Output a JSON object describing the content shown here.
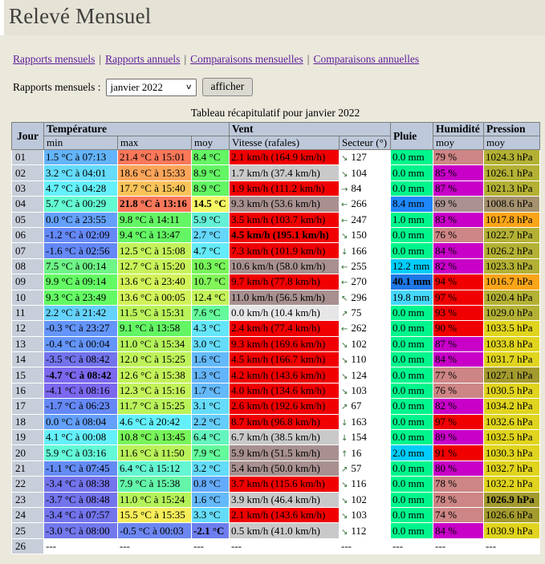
{
  "header": {
    "title": "Relevé Mensuel"
  },
  "nav": {
    "separator": "|",
    "links": [
      {
        "label": "Rapports mensuels"
      },
      {
        "label": "Rapports annuels"
      },
      {
        "label": "Comparaisons mensuelles"
      },
      {
        "label": "Comparaisons annuelles"
      }
    ]
  },
  "controls": {
    "label": "Rapports mensuels :",
    "select_value": "janvier 2022",
    "button_label": "afficher"
  },
  "colors": {
    "page_bg": "#ebe8dc",
    "band_bg": "#e5e2d6",
    "header_cell_bg": "#bdc8da",
    "day_cell_bg": "#c7cdd9",
    "link": "#5b1d99",
    "arrow": "#2f6b2f",
    "title": "#403f3b"
  },
  "table": {
    "caption": "Tableau récapitulatif pour janvier 2022",
    "headers": {
      "jour": "Jour",
      "temperature": "Température",
      "vent": "Vent",
      "pluie": "Pluie",
      "humidite": "Humidité",
      "pression": "Pression",
      "min": "min",
      "max": "max",
      "moy": "moy",
      "vitesse": "Vitesse (rafales)",
      "secteur": "Secteur (°)",
      "hum_moy": "moy",
      "press_moy": "moy"
    },
    "rows": [
      {
        "day": "01",
        "min": {
          "t": "1.5 °C à 07:13",
          "c": "#64b4fa"
        },
        "max": {
          "t": "21.4 °C à 15:01",
          "c": "#fa785a"
        },
        "avg": {
          "t": "8.4 °C",
          "c": "#64f564"
        },
        "wind": {
          "t": "2.1 km/h (164.9 km/h)",
          "c": "#f00000"
        },
        "sector": {
          "arrow": "↘",
          "deg": "127"
        },
        "rain": {
          "t": "0.0 mm",
          "c": "#00f58c"
        },
        "hum": {
          "t": "79 %",
          "c": "#cd8585"
        },
        "press": {
          "t": "1024.3 hPa",
          "c": "#b3b135"
        }
      },
      {
        "day": "02",
        "min": {
          "t": "3.2 °C à 04:01",
          "c": "#64dcfa"
        },
        "max": {
          "t": "18.6 °C à 15:33",
          "c": "#faa55a"
        },
        "avg": {
          "t": "8.9 °C",
          "c": "#64f564"
        },
        "wind": {
          "t": "1.7 km/h (37.4 km/h)",
          "c": "#c9c9c9"
        },
        "sector": {
          "arrow": "↘",
          "deg": "104"
        },
        "rain": {
          "t": "0.0 mm",
          "c": "#00f58c"
        },
        "hum": {
          "t": "85 %",
          "c": "#c800c8"
        },
        "press": {
          "t": "1026.1 hPa",
          "c": "#b3b135"
        }
      },
      {
        "day": "03",
        "min": {
          "t": "4.7 °C à 04:28",
          "c": "#64f0fa"
        },
        "max": {
          "t": "17.7 °C à 15:40",
          "c": "#fac35a"
        },
        "avg": {
          "t": "8.9 °C",
          "c": "#64f564"
        },
        "wind": {
          "t": "1.9 km/h (111.2 km/h)",
          "c": "#f00000"
        },
        "sector": {
          "arrow": "→",
          "deg": "84"
        },
        "rain": {
          "t": "0.0 mm",
          "c": "#00f58c"
        },
        "hum": {
          "t": "87 %",
          "c": "#c800c8"
        },
        "press": {
          "t": "1021.3 hPa",
          "c": "#b3b135"
        }
      },
      {
        "day": "04",
        "min": {
          "t": "5.7 °C à 00:29",
          "c": "#64fad2"
        },
        "max": {
          "t": "21.8 °C à 13:16",
          "c": "#fa785a",
          "b": true
        },
        "avg": {
          "t": "14.5 °C",
          "c": "#f5f564",
          "b": true
        },
        "wind": {
          "t": "9.3 km/h (53.6 km/h)",
          "c": "#a89090"
        },
        "sector": {
          "arrow": "←",
          "deg": "266"
        },
        "rain": {
          "t": "8.4 mm",
          "c": "#1e87fa"
        },
        "hum": {
          "t": "69 %",
          "c": "#ab9191"
        },
        "press": {
          "t": "1008.6 hPa",
          "c": "#a5916e"
        }
      },
      {
        "day": "05",
        "min": {
          "t": "0.0 °C à 23:55",
          "c": "#64a0fa"
        },
        "max": {
          "t": "9.8 °C à 14:11",
          "c": "#64f564"
        },
        "avg": {
          "t": "5.9 °C",
          "c": "#64f0d7"
        },
        "wind": {
          "t": "3.5 km/h (103.7 km/h)",
          "c": "#f00000"
        },
        "sector": {
          "arrow": "←",
          "deg": "247"
        },
        "rain": {
          "t": "1.0 mm",
          "c": "#00f58c"
        },
        "hum": {
          "t": "83 %",
          "c": "#c800c8"
        },
        "press": {
          "t": "1017.8 hPa",
          "c": "#faa519"
        }
      },
      {
        "day": "06",
        "min": {
          "t": "-1.2 °C à 02:09",
          "c": "#6488f5"
        },
        "max": {
          "t": "9.4 °C à 13:47",
          "c": "#64f564"
        },
        "avg": {
          "t": "2.7 °C",
          "c": "#64d7fa"
        },
        "wind": {
          "t": "4.5 km/h (195.1 km/h)",
          "c": "#f00000",
          "b": true
        },
        "sector": {
          "arrow": "↘",
          "deg": "150"
        },
        "rain": {
          "t": "0.0 mm",
          "c": "#00f58c"
        },
        "hum": {
          "t": "76 %",
          "c": "#cd8585"
        },
        "press": {
          "t": "1022.7 hPa",
          "c": "#b3b135"
        }
      },
      {
        "day": "07",
        "min": {
          "t": "-1.6 °C à 02:56",
          "c": "#6488f5"
        },
        "max": {
          "t": "12.5 °C à 15:08",
          "c": "#c3f25a"
        },
        "avg": {
          "t": "4.7 °C",
          "c": "#64ebfa"
        },
        "wind": {
          "t": "7.3 km/h (101.9 km/h)",
          "c": "#f00000"
        },
        "sector": {
          "arrow": "↓",
          "deg": "166"
        },
        "rain": {
          "t": "0.0 mm",
          "c": "#00f58c"
        },
        "hum": {
          "t": "84 %",
          "c": "#c800c8"
        },
        "press": {
          "t": "1026.2 hPa",
          "c": "#b3b135"
        }
      },
      {
        "day": "08",
        "min": {
          "t": "7.5 °C à 00:14",
          "c": "#6ef587"
        },
        "max": {
          "t": "12.7 °C à 15:20",
          "c": "#c8f25a"
        },
        "avg": {
          "t": "10.3 °C",
          "c": "#78f55a"
        },
        "wind": {
          "t": "10.6 km/h (58.0 km/h)",
          "c": "#a89090"
        },
        "sector": {
          "arrow": "←",
          "deg": "255"
        },
        "rain": {
          "t": "12.2 mm",
          "c": "#00cdfa"
        },
        "hum": {
          "t": "82 %",
          "c": "#c800c8"
        },
        "press": {
          "t": "1023.3 hPa",
          "c": "#b3b135"
        }
      },
      {
        "day": "09",
        "min": {
          "t": "9.9 °C à 09:14",
          "c": "#64fa64"
        },
        "max": {
          "t": "13.6 °C à 23:40",
          "c": "#d2f25a"
        },
        "avg": {
          "t": "10.7 °C",
          "c": "#82f55a"
        },
        "wind": {
          "t": "9.7 km/h (77.8 km/h)",
          "c": "#f00000"
        },
        "sector": {
          "arrow": "←",
          "deg": "270"
        },
        "rain": {
          "t": "40.1 mm",
          "c": "#1e78e6",
          "b": true
        },
        "hum": {
          "t": "94 %",
          "c": "#f00000"
        },
        "press": {
          "t": "1016.7 hPa",
          "c": "#faa519"
        }
      },
      {
        "day": "10",
        "min": {
          "t": "9.3 °C à 23:49",
          "c": "#64fa64"
        },
        "max": {
          "t": "13.6 °C à 00:05",
          "c": "#d2f25a"
        },
        "avg": {
          "t": "12.4 °C",
          "c": "#c3f25a"
        },
        "wind": {
          "t": "11.0 km/h (56.5 km/h)",
          "c": "#a89090"
        },
        "sector": {
          "arrow": "↖",
          "deg": "296"
        },
        "rain": {
          "t": "19.8 mm",
          "c": "#46d7fa"
        },
        "hum": {
          "t": "97 %",
          "c": "#f00000"
        },
        "press": {
          "t": "1020.4 hPa",
          "c": "#b3b135"
        }
      },
      {
        "day": "11",
        "min": {
          "t": "2.2 °C à 21:42",
          "c": "#64d2fa"
        },
        "max": {
          "t": "11.5 °C à 15:31",
          "c": "#b9f25a"
        },
        "avg": {
          "t": "7.6 °C",
          "c": "#64fa9b"
        },
        "wind": {
          "t": "0.0 km/h (10.4 km/h)",
          "c": "#e6e6e6"
        },
        "sector": {
          "arrow": "↗",
          "deg": "75"
        },
        "rain": {
          "t": "0.0 mm",
          "c": "#00f58c"
        },
        "hum": {
          "t": "93 %",
          "c": "#f00000"
        },
        "press": {
          "t": "1029.0 hPa",
          "c": "#b3b135"
        }
      },
      {
        "day": "12",
        "min": {
          "t": "-0.3 °C à 23:27",
          "c": "#6495fa"
        },
        "max": {
          "t": "9.1 °C à 13:58",
          "c": "#64f564"
        },
        "avg": {
          "t": "4.3 °C",
          "c": "#64e6fa"
        },
        "wind": {
          "t": "2.4 km/h (77.4 km/h)",
          "c": "#f00000"
        },
        "sector": {
          "arrow": "←",
          "deg": "262"
        },
        "rain": {
          "t": "0.0 mm",
          "c": "#00f58c"
        },
        "hum": {
          "t": "90 %",
          "c": "#f00000"
        },
        "press": {
          "t": "1033.5 hPa",
          "c": "#e0d41e"
        }
      },
      {
        "day": "13",
        "min": {
          "t": "-0.4 °C à 00:04",
          "c": "#6495fa"
        },
        "max": {
          "t": "11.0 °C à 15:34",
          "c": "#b4f25a"
        },
        "avg": {
          "t": "3.0 °C",
          "c": "#64dcfa"
        },
        "wind": {
          "t": "9.3 km/h (169.6 km/h)",
          "c": "#f00000"
        },
        "sector": {
          "arrow": "↘",
          "deg": "102"
        },
        "rain": {
          "t": "0.0 mm",
          "c": "#00f58c"
        },
        "hum": {
          "t": "87 %",
          "c": "#c800c8"
        },
        "press": {
          "t": "1033.8 hPa",
          "c": "#e0d41e"
        }
      },
      {
        "day": "14",
        "min": {
          "t": "-3.5 °C à 08:42",
          "c": "#7373ec"
        },
        "max": {
          "t": "12.0 °C à 15:25",
          "c": "#bef25a"
        },
        "avg": {
          "t": "1.6 °C",
          "c": "#64b9fa"
        },
        "wind": {
          "t": "4.5 km/h (166.7 km/h)",
          "c": "#f00000"
        },
        "sector": {
          "arrow": "↘",
          "deg": "110"
        },
        "rain": {
          "t": "0.0 mm",
          "c": "#00f58c"
        },
        "hum": {
          "t": "84 %",
          "c": "#c800c8"
        },
        "press": {
          "t": "1031.7 hPa",
          "c": "#e0d41e"
        }
      },
      {
        "day": "15",
        "min": {
          "t": "-4.7 °C à 08:42",
          "c": "#7b68ee",
          "b": true
        },
        "max": {
          "t": "12.6 °C à 15:38",
          "c": "#c3f25a"
        },
        "avg": {
          "t": "1.3 °C",
          "c": "#64b4fa"
        },
        "wind": {
          "t": "4.2 km/h (143.6 km/h)",
          "c": "#f00000"
        },
        "sector": {
          "arrow": "↘",
          "deg": "124"
        },
        "rain": {
          "t": "0.0 mm",
          "c": "#00f58c"
        },
        "hum": {
          "t": "77 %",
          "c": "#cd8585"
        },
        "press": {
          "t": "1027.1 hPa",
          "c": "#a39b2e"
        }
      },
      {
        "day": "16",
        "min": {
          "t": "-4.1 °C à 08:16",
          "c": "#7b68ee"
        },
        "max": {
          "t": "12.3 °C à 15:16",
          "c": "#c3f25a"
        },
        "avg": {
          "t": "1.7 °C",
          "c": "#64b9fa"
        },
        "wind": {
          "t": "4.0 km/h (134.6 km/h)",
          "c": "#f00000"
        },
        "sector": {
          "arrow": "↘",
          "deg": "103"
        },
        "rain": {
          "t": "0.0 mm",
          "c": "#00f58c"
        },
        "hum": {
          "t": "76 %",
          "c": "#cd8585"
        },
        "press": {
          "t": "1030.5 hPa",
          "c": "#e0d41e"
        }
      },
      {
        "day": "17",
        "min": {
          "t": "-1.7 °C à 06:23",
          "c": "#6488f5"
        },
        "max": {
          "t": "11.7 °C à 15:25",
          "c": "#b9f25a"
        },
        "avg": {
          "t": "3.1 °C",
          "c": "#64dcfa"
        },
        "wind": {
          "t": "2.6 km/h (192.6 km/h)",
          "c": "#f00000"
        },
        "sector": {
          "arrow": "↗",
          "deg": "67"
        },
        "rain": {
          "t": "0.0 mm",
          "c": "#00f58c"
        },
        "hum": {
          "t": "82 %",
          "c": "#c800c8"
        },
        "press": {
          "t": "1034.2 hPa",
          "c": "#e0d41e"
        }
      },
      {
        "day": "18",
        "min": {
          "t": "0.0 °C à 08:04",
          "c": "#64a0fa"
        },
        "max": {
          "t": "4.6 °C à 20:42",
          "c": "#64f0fa"
        },
        "avg": {
          "t": "2.2 °C",
          "c": "#64cdfa"
        },
        "wind": {
          "t": "8.7 km/h (96.8 km/h)",
          "c": "#f00000"
        },
        "sector": {
          "arrow": "↓",
          "deg": "163"
        },
        "rain": {
          "t": "0.0 mm",
          "c": "#00f58c"
        },
        "hum": {
          "t": "97 %",
          "c": "#f00000"
        },
        "press": {
          "t": "1032.6 hPa",
          "c": "#e0d41e"
        }
      },
      {
        "day": "19",
        "min": {
          "t": "4.1 °C à 00:08",
          "c": "#64f0fa"
        },
        "max": {
          "t": "10.8 °C à 13:45",
          "c": "#78f55a"
        },
        "avg": {
          "t": "6.4 °C",
          "c": "#64f5be"
        },
        "wind": {
          "t": "6.7 km/h (38.5 km/h)",
          "c": "#c9c9c9"
        },
        "sector": {
          "arrow": "↓",
          "deg": "154"
        },
        "rain": {
          "t": "0.0 mm",
          "c": "#00f58c"
        },
        "hum": {
          "t": "89 %",
          "c": "#c800c8"
        },
        "press": {
          "t": "1032.5 hPa",
          "c": "#e0d41e"
        }
      },
      {
        "day": "20",
        "min": {
          "t": "5.9 °C à 03:16",
          "c": "#64fad7"
        },
        "max": {
          "t": "11.6 °C à 11:50",
          "c": "#b9f25a"
        },
        "avg": {
          "t": "7.9 °C",
          "c": "#64fa9b"
        },
        "wind": {
          "t": "5.9 km/h (51.5 km/h)",
          "c": "#a89090"
        },
        "sector": {
          "arrow": "↑",
          "deg": "16"
        },
        "rain": {
          "t": "2.0 mm",
          "c": "#00cdfa"
        },
        "hum": {
          "t": "91 %",
          "c": "#f00000"
        },
        "press": {
          "t": "1030.3 hPa",
          "c": "#e0d41e"
        }
      },
      {
        "day": "21",
        "min": {
          "t": "-1.1 °C à 07:45",
          "c": "#648cf5"
        },
        "max": {
          "t": "6.4 °C à 15:12",
          "c": "#64f5d2"
        },
        "avg": {
          "t": "3.2 °C",
          "c": "#64dcfa"
        },
        "wind": {
          "t": "5.4 km/h (50.0 km/h)",
          "c": "#a89090"
        },
        "sector": {
          "arrow": "↗",
          "deg": "57"
        },
        "rain": {
          "t": "0.0 mm",
          "c": "#00f58c"
        },
        "hum": {
          "t": "80 %",
          "c": "#c800c8"
        },
        "press": {
          "t": "1032.7 hPa",
          "c": "#e0d41e"
        }
      },
      {
        "day": "22",
        "min": {
          "t": "-3.4 °C à 08:38",
          "c": "#7373ec"
        },
        "max": {
          "t": "7.9 °C à 15:38",
          "c": "#64f5aa"
        },
        "avg": {
          "t": "0.8 °C",
          "c": "#64aafa"
        },
        "wind": {
          "t": "3.7 km/h (115.6 km/h)",
          "c": "#f00000"
        },
        "sector": {
          "arrow": "↘",
          "deg": "116"
        },
        "rain": {
          "t": "0.0 mm",
          "c": "#00f58c"
        },
        "hum": {
          "t": "78 %",
          "c": "#cd8585"
        },
        "press": {
          "t": "1032.2 hPa",
          "c": "#e0d41e"
        }
      },
      {
        "day": "23",
        "min": {
          "t": "-3.7 °C à 08:48",
          "c": "#7373ec"
        },
        "max": {
          "t": "11.0 °C à 15:24",
          "c": "#b4f25a"
        },
        "avg": {
          "t": "1.6 °C",
          "c": "#64b9fa"
        },
        "wind": {
          "t": "3.9 km/h (46.4 km/h)",
          "c": "#c9c9c9"
        },
        "sector": {
          "arrow": "↘",
          "deg": "102"
        },
        "rain": {
          "t": "0.0 mm",
          "c": "#00f58c"
        },
        "hum": {
          "t": "78 %",
          "c": "#cd8585"
        },
        "press": {
          "t": "1026.9 hPa",
          "c": "#a39b2e",
          "b": true
        }
      },
      {
        "day": "24",
        "min": {
          "t": "-3.4 °C à 07:57",
          "c": "#7373ec"
        },
        "max": {
          "t": "15.5 °C à 15:35",
          "c": "#f5ed5a"
        },
        "avg": {
          "t": "3.3 °C",
          "c": "#64dcfa"
        },
        "wind": {
          "t": "2.1 km/h (143.6 km/h)",
          "c": "#f00000"
        },
        "sector": {
          "arrow": "↘",
          "deg": "103"
        },
        "rain": {
          "t": "0.0 mm",
          "c": "#00f58c"
        },
        "hum": {
          "t": "74 %",
          "c": "#cd8585"
        },
        "press": {
          "t": "1026.6 hPa",
          "c": "#a39b2e"
        }
      },
      {
        "day": "25",
        "min": {
          "t": "-3.0 °C à 08:00",
          "c": "#7378ec"
        },
        "max": {
          "t": "-0.5 °C à 00:03",
          "c": "#6d87f0"
        },
        "avg": {
          "t": "-2.1 °C",
          "c": "#6e7eee",
          "b": true
        },
        "wind": {
          "t": "0.5 km/h (41.0 km/h)",
          "c": "#c9c9c9"
        },
        "sector": {
          "arrow": "↘",
          "deg": "112"
        },
        "rain": {
          "t": "0.0 mm",
          "c": "#00f58c"
        },
        "hum": {
          "t": "84 %",
          "c": "#c800c8"
        },
        "press": {
          "t": "1030.9 hPa",
          "c": "#e0d41e"
        }
      },
      {
        "day": "26",
        "min": {
          "t": "---"
        },
        "max": {
          "t": "---"
        },
        "avg": {
          "t": "---"
        },
        "wind": {
          "t": "---"
        },
        "sector": {
          "arrow": "",
          "deg": "---"
        },
        "rain": {
          "t": "---"
        },
        "hum": {
          "t": "---"
        },
        "press": {
          "t": "---"
        }
      }
    ]
  }
}
